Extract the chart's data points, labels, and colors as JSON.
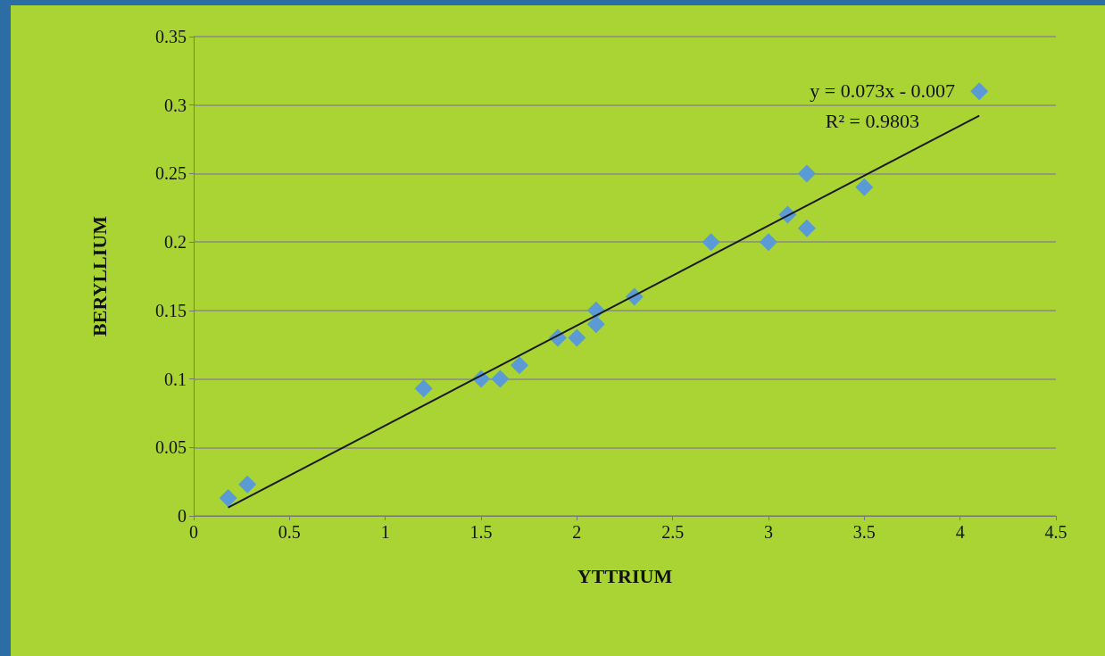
{
  "chart_data": {
    "type": "scatter",
    "xlabel": "YTTRIUM",
    "ylabel": "BERYLLIUM",
    "xlim": [
      0,
      4.5
    ],
    "xticks": [
      0,
      0.5,
      1,
      1.5,
      2,
      2.5,
      3,
      3.5,
      4,
      4.5
    ],
    "ylim": [
      0,
      0.35
    ],
    "yticks": [
      0,
      0.05,
      0.1,
      0.15,
      0.2,
      0.25,
      0.3,
      0.35
    ],
    "grid": "y",
    "marker": "diamond",
    "series": [
      {
        "color": "#5b9bd5",
        "x": [
          0.18,
          0.28,
          1.2,
          1.5,
          1.6,
          1.7,
          1.9,
          2.0,
          2.1,
          2.1,
          2.3,
          2.7,
          3.0,
          3.1,
          3.2,
          3.2,
          3.5,
          4.1
        ],
        "values": [
          0.013,
          0.023,
          0.093,
          0.1,
          0.1,
          0.11,
          0.13,
          0.13,
          0.14,
          0.15,
          0.16,
          0.2,
          0.2,
          0.22,
          0.21,
          0.25,
          0.24,
          0.31
        ]
      },
      {
        "type": "line",
        "color": "#1a1a1a",
        "marker": "none",
        "x": [
          0.18,
          4.1
        ],
        "values": [
          0.0061,
          0.2923
        ]
      }
    ],
    "annotations": [
      "y = 0.073x - 0.007",
      "R² = 0.9803"
    ]
  }
}
